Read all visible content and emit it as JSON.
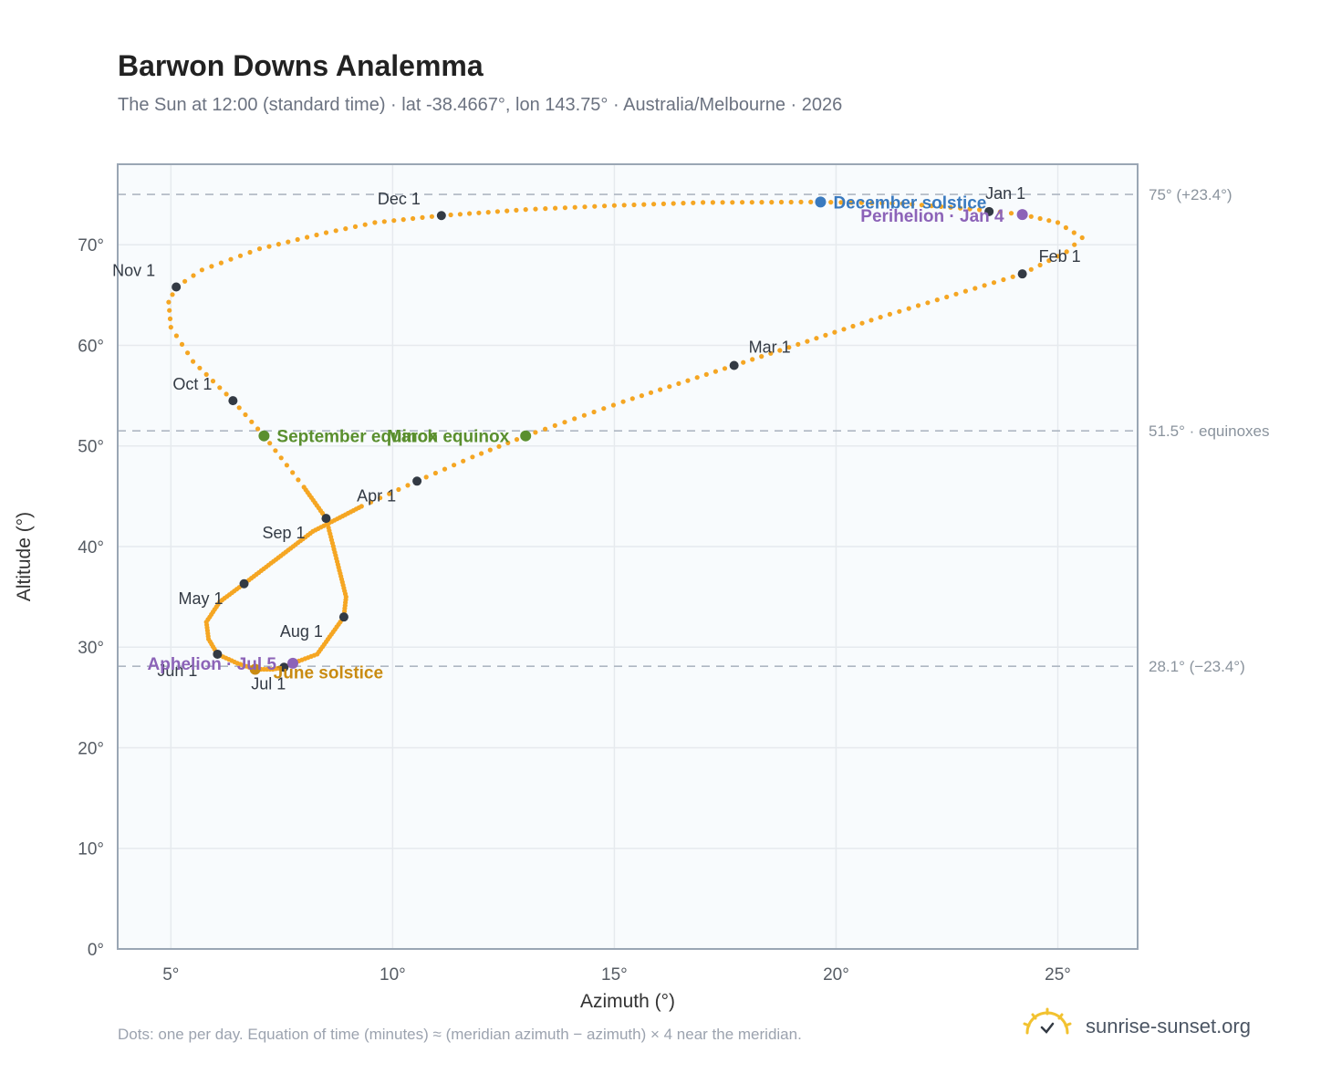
{
  "header": {
    "title": "Barwon Downs Analemma",
    "subtitle": "The Sun at 12:00 (standard time) · lat -38.4667°, lon 143.75° · Australia/Melbourne · 2026"
  },
  "footer": {
    "note": "Dots: one per day. Equation of time (minutes) ≈ (meridian azimuth − azimuth) × 4 near the meridian.",
    "brand": "sunrise-sunset.org"
  },
  "colors": {
    "path": "#f5a623",
    "month_marker": "#333a44",
    "equinox": "#5a8f2e",
    "december_solstice": "#3a7abf",
    "june_solstice": "#c98b12",
    "apsis": "#8c63b8",
    "reference_line": "#aeb7c2",
    "plot_background": "#f8fbfd",
    "grid": "#e6eaee"
  },
  "chart_data": {
    "type": "scatter",
    "xlabel": "Azimuth (°)",
    "ylabel": "Altitude (°)",
    "xlim": [
      3.8,
      26.8
    ],
    "ylim": [
      0,
      78
    ],
    "xticks": [
      5,
      10,
      15,
      20,
      25
    ],
    "xtick_labels": [
      "5°",
      "10°",
      "15°",
      "20°",
      "25°"
    ],
    "yticks": [
      0,
      10,
      20,
      30,
      40,
      50,
      60,
      70
    ],
    "ytick_labels": [
      "0°",
      "10°",
      "20°",
      "30°",
      "40°",
      "50°",
      "60°",
      "70°"
    ],
    "grid": true,
    "analemma_path": [
      {
        "x": 23.45,
        "y": 73.4
      },
      {
        "x": 24.2,
        "y": 73.0
      },
      {
        "x": 25.0,
        "y": 72.2
      },
      {
        "x": 25.55,
        "y": 70.7
      },
      {
        "x": 25.2,
        "y": 69.3
      },
      {
        "x": 24.2,
        "y": 67.1
      },
      {
        "x": 21.0,
        "y": 62.8
      },
      {
        "x": 17.7,
        "y": 58.0
      },
      {
        "x": 15.2,
        "y": 54.4
      },
      {
        "x": 13.0,
        "y": 51.0
      },
      {
        "x": 11.8,
        "y": 48.9
      },
      {
        "x": 10.55,
        "y": 46.5
      },
      {
        "x": 9.3,
        "y": 44.0
      },
      {
        "x": 8.2,
        "y": 41.5
      },
      {
        "x": 6.65,
        "y": 36.3
      },
      {
        "x": 6.1,
        "y": 34.5
      },
      {
        "x": 5.8,
        "y": 32.5
      },
      {
        "x": 5.85,
        "y": 30.8
      },
      {
        "x": 6.05,
        "y": 29.3
      },
      {
        "x": 6.5,
        "y": 28.4
      },
      {
        "x": 6.9,
        "y": 27.8
      },
      {
        "x": 7.3,
        "y": 27.8
      },
      {
        "x": 7.55,
        "y": 28.0
      },
      {
        "x": 7.75,
        "y": 28.4
      },
      {
        "x": 8.3,
        "y": 29.3
      },
      {
        "x": 8.9,
        "y": 33.0
      },
      {
        "x": 8.95,
        "y": 35.0
      },
      {
        "x": 8.75,
        "y": 38.5
      },
      {
        "x": 8.5,
        "y": 42.8
      },
      {
        "x": 8.0,
        "y": 45.9
      },
      {
        "x": 7.1,
        "y": 51.0
      },
      {
        "x": 6.4,
        "y": 54.5
      },
      {
        "x": 5.5,
        "y": 58.4
      },
      {
        "x": 5.0,
        "y": 61.8
      },
      {
        "x": 4.95,
        "y": 64.3
      },
      {
        "x": 5.12,
        "y": 65.8
      },
      {
        "x": 5.7,
        "y": 67.5
      },
      {
        "x": 7.0,
        "y": 69.6
      },
      {
        "x": 8.5,
        "y": 71.2
      },
      {
        "x": 9.6,
        "y": 72.2
      },
      {
        "x": 11.1,
        "y": 72.9
      },
      {
        "x": 13.0,
        "y": 73.5
      },
      {
        "x": 15.0,
        "y": 73.9
      },
      {
        "x": 17.0,
        "y": 74.2
      },
      {
        "x": 19.65,
        "y": 74.25
      },
      {
        "x": 21.5,
        "y": 74.1
      },
      {
        "x": 23.45,
        "y": 73.4
      }
    ],
    "month_markers": [
      {
        "label": "Jan 1",
        "x": 23.45,
        "y": 73.3
      },
      {
        "label": "Feb 1",
        "x": 24.2,
        "y": 67.1
      },
      {
        "label": "Mar 1",
        "x": 17.7,
        "y": 58.0
      },
      {
        "label": "Apr 1",
        "x": 10.55,
        "y": 46.5
      },
      {
        "label": "May 1",
        "x": 6.65,
        "y": 36.3
      },
      {
        "label": "Jun 1",
        "x": 6.05,
        "y": 29.3
      },
      {
        "label": "Jul 1",
        "x": 7.55,
        "y": 28.0
      },
      {
        "label": "Aug 1",
        "x": 8.9,
        "y": 33.0
      },
      {
        "label": "Sep 1",
        "x": 8.5,
        "y": 42.8
      },
      {
        "label": "Oct 1",
        "x": 6.4,
        "y": 54.5
      },
      {
        "label": "Nov 1",
        "x": 5.12,
        "y": 65.8
      },
      {
        "label": "Dec 1",
        "x": 11.1,
        "y": 72.9
      }
    ],
    "events": [
      {
        "label": "December solstice",
        "x": 19.65,
        "y": 74.25,
        "color": "#3a7abf",
        "label_side": "right"
      },
      {
        "label": "Perihelion · Jan 4",
        "x": 24.2,
        "y": 73.0,
        "color": "#8c63b8",
        "label_side": "left-below"
      },
      {
        "label": "March equinox",
        "x": 13.0,
        "y": 51.0,
        "color": "#5a8f2e",
        "label_side": "left"
      },
      {
        "label": "September equinox",
        "x": 7.1,
        "y": 51.0,
        "color": "#5a8f2e",
        "label_side": "right"
      },
      {
        "label": "June solstice",
        "x": 6.9,
        "y": 27.8,
        "color": "#c98b12",
        "label_side": "right"
      },
      {
        "label": "Aphelion · Jul 5",
        "x": 7.75,
        "y": 28.4,
        "color": "#8c63b8",
        "label_side": "left"
      }
    ],
    "reference_lines": [
      {
        "y": 75.0,
        "label": "75° (+23.4°)"
      },
      {
        "y": 51.5,
        "label": "51.5° · equinoxes"
      },
      {
        "y": 28.1,
        "label": "28.1° (−23.4°)"
      }
    ]
  }
}
